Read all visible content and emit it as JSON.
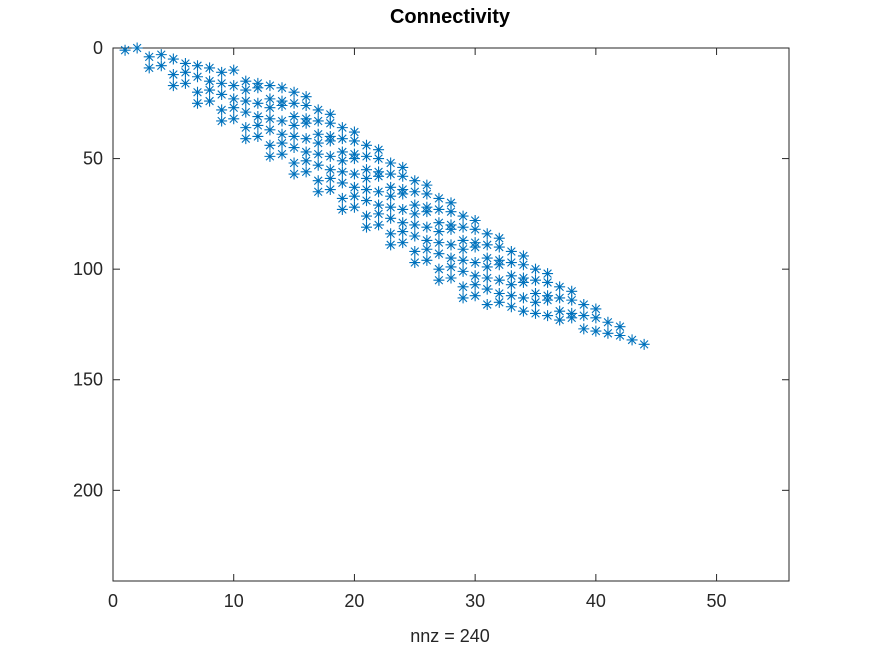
{
  "chart_data": {
    "type": "scatter",
    "title": "Connectivity",
    "xlabel": "nnz = 240",
    "ylabel": "",
    "xlim": [
      0,
      56
    ],
    "ylim": [
      0,
      241
    ],
    "y_reversed": true,
    "marker": "asterisk",
    "color": "#0072BD",
    "grid": false,
    "xticks": [
      0,
      10,
      20,
      30,
      40,
      50
    ],
    "yticks": [
      0,
      50,
      100,
      150,
      200
    ],
    "offsets": [
      [
        0,
        0
      ],
      [
        1,
        -1
      ],
      [
        2,
        3
      ],
      [
        3,
        2
      ],
      [
        4,
        4
      ],
      [
        5,
        6
      ],
      [
        6,
        7
      ],
      [
        7,
        8
      ],
      [
        8,
        10
      ],
      [
        9,
        9
      ],
      [
        10,
        14
      ],
      [
        11,
        15
      ],
      [
        12,
        16
      ],
      [
        13,
        17
      ],
      [
        14,
        19
      ],
      [
        15,
        21
      ]
    ],
    "block_step": [
      2,
      8
    ],
    "block_start": [
      1,
      1
    ],
    "block_count": 15,
    "nnz": 240
  }
}
